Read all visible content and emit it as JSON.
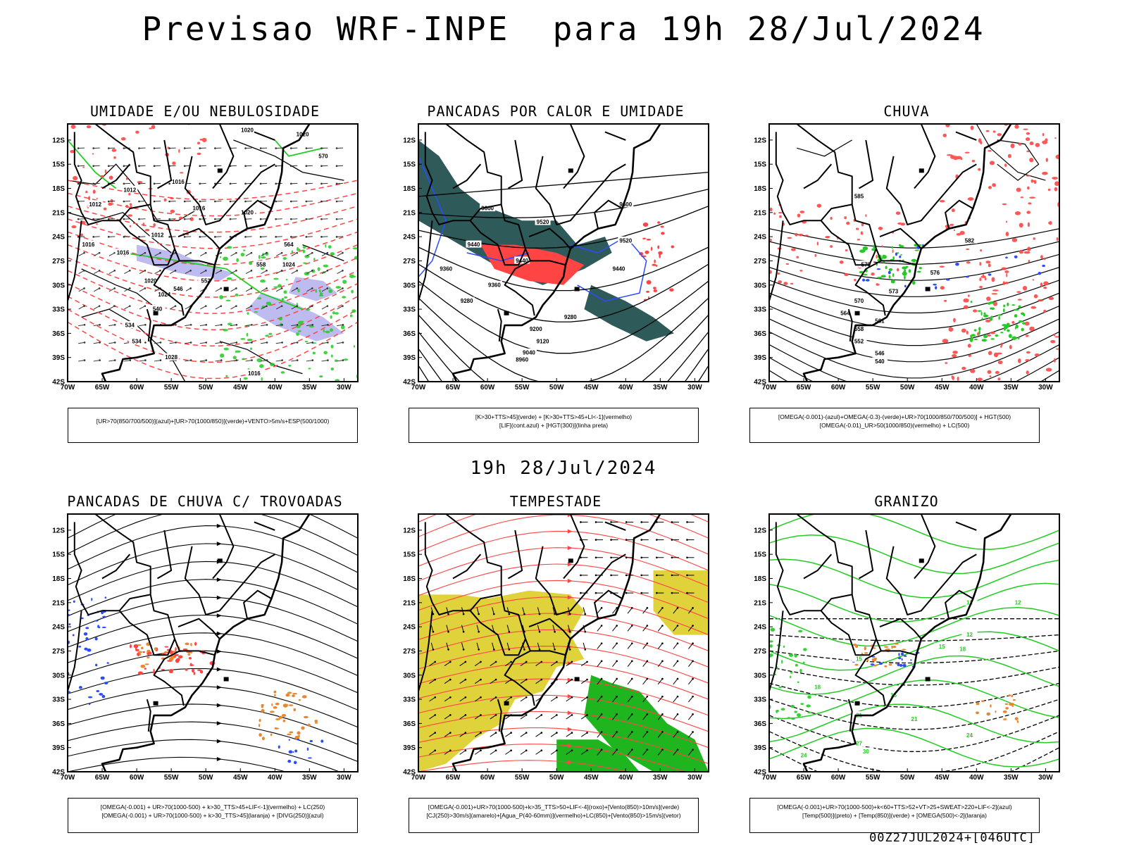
{
  "header": {
    "title": "Previsao WRF-INPE  para 19h 28/Jul/2024",
    "subtitle": "19h 28/Jul/2024"
  },
  "footer": {
    "run_label": "00Z27JUL2024+[046UTC]"
  },
  "axes": {
    "lat_labels": [
      "12S",
      "15S",
      "18S",
      "21S",
      "24S",
      "27S",
      "30S",
      "33S",
      "36S",
      "39S",
      "42S"
    ],
    "lon_labels": [
      "70W",
      "65W",
      "60W",
      "55W",
      "50W",
      "45W",
      "40W",
      "35W",
      "30W"
    ]
  },
  "colors": {
    "blue": "#2a4cff",
    "green": "#22cc22",
    "red": "#ff4444",
    "dark_teal": "#2f5a5a",
    "yellow": "#e0d23a",
    "orange": "#e8872f",
    "lavender": "#b7b4ee"
  },
  "panels": [
    {
      "title": "UMIDADE E/OU NEBULOSIDADE",
      "legend": [
        "[UR>70(850/700/500)](azul)+[UR>70(1000/850)](verde)+VENTO>5m/s+ESP(500/1000)"
      ],
      "contour_labels": [
        "1020",
        "1020",
        "1016",
        "1012",
        "1016",
        "1012",
        "1016",
        "1012",
        "1016",
        "1020",
        "1024",
        "1028",
        "1016",
        "1020",
        "1024",
        "570",
        "564",
        "558",
        "552",
        "546",
        "540",
        "534",
        "534"
      ]
    },
    {
      "title": "PANCADAS POR CALOR E UMIDADE",
      "legend": [
        "[K>30+TTS>45](verde) + [K>30+TTS>45+LI<-1](vermelho)",
        "[LIF](cont.azul) + [HGT(300)](linha preta)"
      ],
      "contour_labels": [
        "9600",
        "9600",
        "9520",
        "9520",
        "9440",
        "9440",
        "9440",
        "9360",
        "9360",
        "9280",
        "9280",
        "9200",
        "9120",
        "9040",
        "8960"
      ]
    },
    {
      "title": "CHUVA",
      "legend": [
        "[OMEGA(-0.001)-(azul)+OMEGA(-0.3)-(verde)+UR>70(1000/850/700/500)] + HGT(500)",
        "[OMEGA(-0.01)_UR>50(1000/850)(vermelho) + LC(500)"
      ],
      "contour_labels": [
        "585",
        "582",
        "579",
        "576",
        "573",
        "570",
        "564",
        "561",
        "558",
        "552",
        "546",
        "540"
      ]
    },
    {
      "title": "PANCADAS DE CHUVA C/ TROVOADAS",
      "legend": [
        "[OMEGA(-0.001) + UR>70(1000-500) + k>30_TTS>45+LIF<-1](vermelho) + LC(250)",
        "[OMEGA(-0.001) + UR>70(1000-500) + k>30_TTS>45](laranja) + [DIVG(250)](azul)"
      ],
      "contour_labels": []
    },
    {
      "title": "TEMPESTADE",
      "legend": [
        "[OMEGA(-0.001)+UR>70(1000-500)+k>35_TTS>50+LIF<-4](roxo)+[Vento(850)>10m/s](verde)",
        "[CJ(250)>30m/s](amarelo)+[Agua_P(40-60mm)](vermelho)+LC(850)+[Vento(850)>15m/s](vetor)"
      ],
      "contour_labels": []
    },
    {
      "title": "GRANIZO",
      "legend": [
        "[OMEGA(-0.001)+UR>70(1000-500)+k<60+TTS>52+VT>25+SWEAT>220+LIF<-2](azul)",
        "[Temp(500)](preto) + [Temp(850)](verde) + [OMEGA(500)<-2](laranja)"
      ],
      "contour_labels": [
        "12",
        "12",
        "15",
        "12",
        "15",
        "18",
        "18",
        "15",
        "21",
        "21",
        "24",
        "27",
        "30",
        "24"
      ]
    }
  ]
}
